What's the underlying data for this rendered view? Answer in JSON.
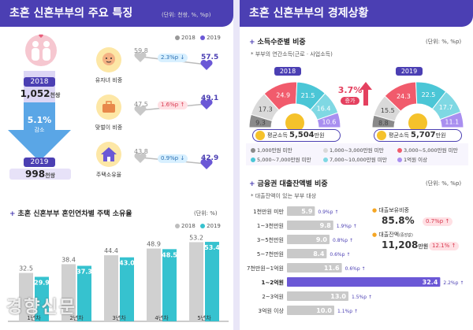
{
  "left": {
    "title": "초혼 신혼부부의 주요 특징",
    "unit": "(단위: 천쌍, %, %p)",
    "legend": [
      "2018",
      "2019"
    ],
    "year_a": "2018",
    "year_b": "2019",
    "count_a": "1,052",
    "count_b": "998",
    "count_unit": "천쌍",
    "change": "5.1%",
    "change_label": "감소",
    "dumbbells": [
      {
        "label": "유자녀 비중",
        "v2018": "59.8",
        "v2019": "57.5",
        "delta": "2.3%p",
        "dir": "down"
      },
      {
        "label": "맞벌이 비중",
        "v2018": "47.5",
        "v2019": "49.1",
        "delta": "1.6%p",
        "dir": "up"
      },
      {
        "label": "주택소유율",
        "v2018": "43.8",
        "v2019": "42.9",
        "delta": "0.9%p",
        "dir": "down"
      }
    ],
    "bar_title": "초혼 신혼부부 혼인연차별 주택 소유율",
    "bar_unit": "(단위: %)",
    "watermark": "경향신문"
  },
  "chart_data": [
    {
      "type": "bar",
      "title": "초혼 신혼부부 혼인연차별 주택 소유율",
      "categories": [
        "1년차",
        "2년차",
        "3년차",
        "4년차",
        "5년차"
      ],
      "series": [
        {
          "name": "2018",
          "values": [
            32.5,
            38.4,
            44.4,
            48.9,
            53.2
          ]
        },
        {
          "name": "2019",
          "values": [
            29.9,
            37.3,
            43.0,
            48.5,
            53.4
          ]
        }
      ],
      "ylim": [
        0,
        60
      ]
    },
    {
      "type": "pie",
      "title": "2018",
      "categories": [
        "1,000만원 미만",
        "1,000~3,000만원 미만",
        "3,000~5,000만원 미만",
        "5,000~7,000만원 미만",
        "7,000~10,000만원 미만",
        "1억원 이상"
      ],
      "values": [
        9.3,
        17.3,
        24.9,
        21.5,
        16.4,
        10.6
      ],
      "colors": [
        "#8a8a8a",
        "#d9d9d9",
        "#f15b6c",
        "#4bc6d6",
        "#7fd8e3",
        "#a98ff0"
      ]
    },
    {
      "type": "pie",
      "title": "2019",
      "categories": [
        "1,000만원 미만",
        "1,000~3,000만원 미만",
        "3,000~5,000만원 미만",
        "5,000~7,000만원 미만",
        "7,000~10,000만원 미만",
        "1억원 이상"
      ],
      "values": [
        8.8,
        15.5,
        24.3,
        22.5,
        17.7,
        11.1
      ],
      "colors": [
        "#8a8a8a",
        "#d9d9d9",
        "#f15b6c",
        "#4bc6d6",
        "#7fd8e3",
        "#a98ff0"
      ]
    },
    {
      "type": "bar",
      "title": "금융권 대출잔액별 비중",
      "categories": [
        "1천만원 미만",
        "1~3천만원",
        "3~5천만원",
        "5~7천만원",
        "7천만원~1억원",
        "1~2억원",
        "2~3억원",
        "3억원 이상"
      ],
      "values": [
        5.9,
        9.8,
        9.0,
        8.4,
        11.6,
        32.4,
        13.0,
        10.0
      ],
      "changes": [
        "0.9%p",
        "1.9%p",
        "0.8%p",
        "0.6%p",
        "0.6%p",
        "2.2%p",
        "1.5%p",
        "1.1%p"
      ],
      "xlim": [
        0,
        35
      ]
    }
  ],
  "right": {
    "title": "초혼 신혼부부의 경제상황",
    "s1_title": "소득수준별 비중",
    "s1_unit": "(단위: %, %p)",
    "s1_sub": "* 부부의 연간소득(근로 · 사업소득)",
    "donut_a_year": "2018",
    "donut_b_year": "2019",
    "diff": "3.7%",
    "diff_label": "증가",
    "avg_label": "평균소득",
    "avg_a": "5,504",
    "avg_b": "5,707",
    "avg_unit": "만원",
    "legend_items": [
      "1,000만원 미만",
      "1,000~3,000만원 미만",
      "3,000~5,000만원 미만",
      "5,000~7,000만원 미만",
      "7,000~10,000만원 미만",
      "1억원 이상"
    ],
    "s2_title": "금융권 대출잔액별 비중",
    "s2_unit": "(단위: %, %p)",
    "s2_sub": "* 대출잔액이 있는 부부 대상",
    "loan_ratio_label": "대출보유비중",
    "loan_ratio": "85.8%",
    "loan_ratio_chg": "0.7%p",
    "loan_amt_label": "대출잔액",
    "loan_amt_sub": "(중앙값)",
    "loan_amt": "11,208",
    "loan_amt_unit": "만원",
    "loan_amt_chg": "12.1%"
  }
}
